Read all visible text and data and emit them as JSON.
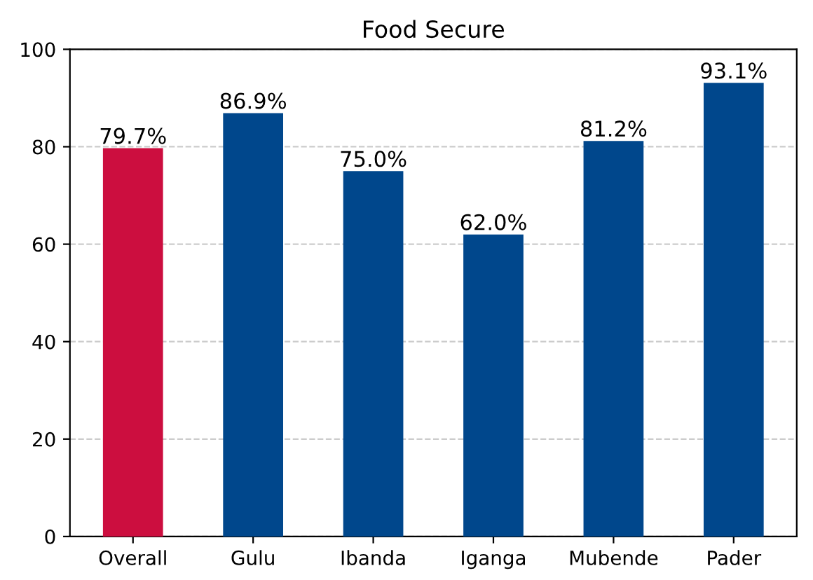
{
  "chart_data": {
    "type": "bar",
    "title": "Food Secure",
    "categories": [
      "Overall",
      "Gulu",
      "Ibanda",
      "Iganga",
      "Mubende",
      "Pader"
    ],
    "values": [
      79.7,
      86.9,
      75.0,
      62.0,
      81.2,
      93.1
    ],
    "colors": [
      "#cc0e3f",
      "#00478c",
      "#00478c",
      "#00478c",
      "#00478c",
      "#00478c"
    ],
    "value_labels": [
      "79.7%",
      "86.9%",
      "75.0%",
      "62.0%",
      "81.2%",
      "93.1%"
    ],
    "ylim": [
      0,
      100
    ],
    "yticks": [
      0,
      20,
      40,
      60,
      80,
      100
    ],
    "grid": "y"
  }
}
